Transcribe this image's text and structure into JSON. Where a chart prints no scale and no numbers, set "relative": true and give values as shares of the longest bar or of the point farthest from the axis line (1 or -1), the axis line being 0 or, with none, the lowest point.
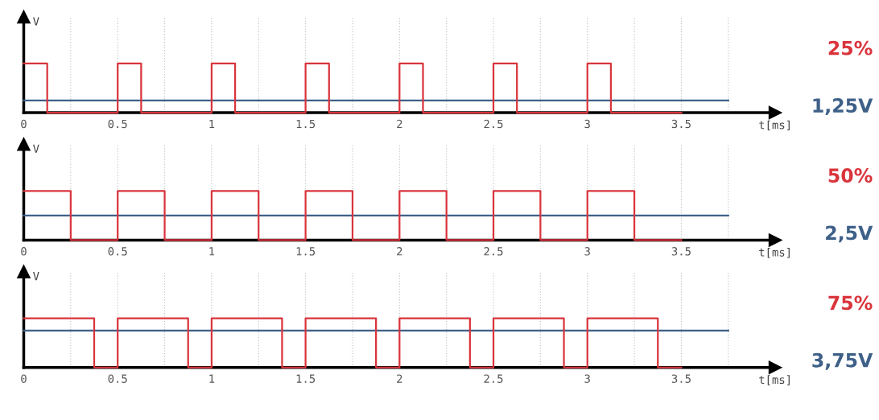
{
  "chart_data": [
    {
      "type": "step",
      "relative": true,
      "xlabel": "t[ms]",
      "ylabel": "V",
      "xlim": [
        0,
        4
      ],
      "xticks": [
        0,
        {
          "value": 0.25,
          "label": null
        },
        0.5,
        {
          "value": 0.75,
          "label": null
        },
        1,
        {
          "value": 1.25,
          "label": null
        },
        1.5,
        {
          "value": 1.75,
          "label": null
        },
        2,
        {
          "value": 2.25,
          "label": null
        },
        2.5,
        {
          "value": 2.75,
          "label": null
        },
        3,
        {
          "value": 3.25,
          "label": null
        },
        3.5,
        {
          "value": 3.75,
          "label": null
        }
      ],
      "grid": "x",
      "tick_labels": "x",
      "legend": false,
      "series": [
        {
          "name": "25%",
          "color": "#d9343c",
          "x": [
            0,
            0.125,
            0.5,
            0.625,
            1,
            1.125,
            1.5,
            1.625,
            2,
            2.125,
            2.5,
            2.625,
            3,
            3.125,
            3.5
          ],
          "values": [
            1,
            0,
            1,
            0,
            1,
            0,
            1,
            0,
            1,
            0,
            1,
            0,
            1,
            0,
            0
          ]
        },
        {
          "name": "1,25V",
          "type": "line",
          "color": "#3e6088",
          "x": [
            0,
            3.75
          ],
          "values": [
            0.25,
            0.25
          ]
        }
      ]
    },
    {
      "type": "step",
      "relative": true,
      "xlabel": "t[ms]",
      "ylabel": "V",
      "xlim": [
        0,
        4
      ],
      "xticks": [
        0,
        {
          "value": 0.25,
          "label": null
        },
        0.5,
        {
          "value": 0.75,
          "label": null
        },
        1,
        {
          "value": 1.25,
          "label": null
        },
        1.5,
        {
          "value": 1.75,
          "label": null
        },
        2,
        {
          "value": 2.25,
          "label": null
        },
        2.5,
        {
          "value": 2.75,
          "label": null
        },
        3,
        {
          "value": 3.25,
          "label": null
        },
        3.5,
        {
          "value": 3.75,
          "label": null
        }
      ],
      "grid": "x",
      "tick_labels": "x",
      "legend": false,
      "series": [
        {
          "name": "50%",
          "color": "#d9343c",
          "x": [
            0,
            0.25,
            0.5,
            0.75,
            1,
            1.25,
            1.5,
            1.75,
            2,
            2.25,
            2.5,
            2.75,
            3,
            3.25,
            3.5
          ],
          "values": [
            1,
            0,
            1,
            0,
            1,
            0,
            1,
            0,
            1,
            0,
            1,
            0,
            1,
            0,
            0
          ]
        },
        {
          "name": "2,5V",
          "type": "line",
          "color": "#3e6088",
          "x": [
            0,
            3.75
          ],
          "values": [
            0.5,
            0.5
          ]
        }
      ]
    },
    {
      "type": "step",
      "relative": true,
      "xlabel": "t[ms]",
      "ylabel": "V",
      "xlim": [
        0,
        4
      ],
      "xticks": [
        0,
        {
          "value": 0.25,
          "label": null
        },
        0.5,
        {
          "value": 0.75,
          "label": null
        },
        1,
        {
          "value": 1.25,
          "label": null
        },
        1.5,
        {
          "value": 1.75,
          "label": null
        },
        2,
        {
          "value": 2.25,
          "label": null
        },
        2.5,
        {
          "value": 2.75,
          "label": null
        },
        3,
        {
          "value": 3.25,
          "label": null
        },
        3.5,
        {
          "value": 3.75,
          "label": null
        }
      ],
      "grid": "x",
      "tick_labels": "x",
      "legend": false,
      "series": [
        {
          "name": "75%",
          "color": "#d9343c",
          "x": [
            0,
            0.375,
            0.5,
            0.875,
            1,
            1.375,
            1.5,
            1.875,
            2,
            2.375,
            2.5,
            2.875,
            3,
            3.375,
            3.5
          ],
          "values": [
            1,
            0,
            1,
            0,
            1,
            0,
            1,
            0,
            1,
            0,
            1,
            0,
            1,
            0,
            0
          ]
        },
        {
          "name": "3,75V",
          "type": "line",
          "color": "#3e6088",
          "x": [
            0,
            3.75
          ],
          "values": [
            0.75,
            0.75
          ]
        }
      ]
    }
  ]
}
